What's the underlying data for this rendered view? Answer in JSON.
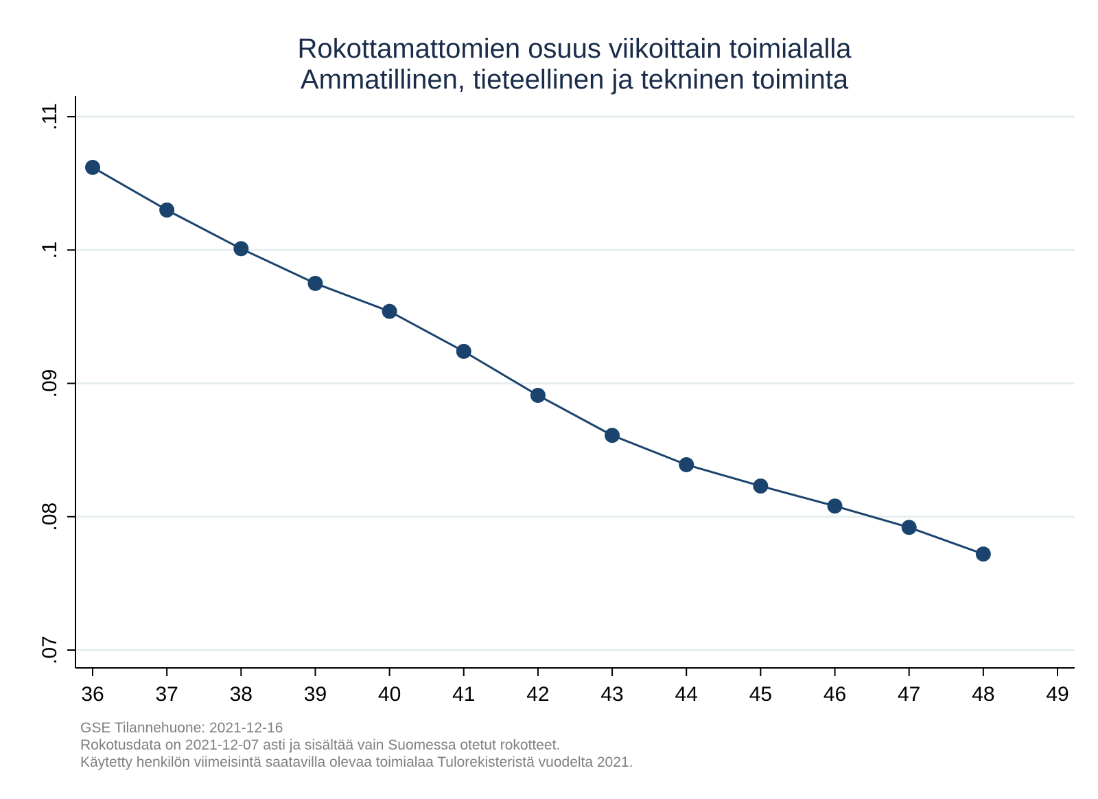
{
  "colors": {
    "series": "#1a446e",
    "grid": "#e6eef1",
    "axis": "#000000",
    "title": "#1a2c4a",
    "note": "#7f7f7f"
  },
  "chart_data": {
    "type": "line",
    "title_lines": [
      "Rokottamattomien osuus viikoittain toimialalla",
      "Ammatillinen, tieteellinen ja tekninen toiminta"
    ],
    "xlabel": "",
    "ylabel": "",
    "x": [
      36,
      37,
      38,
      39,
      40,
      41,
      42,
      43,
      44,
      45,
      46,
      47,
      48
    ],
    "series": [
      {
        "name": "Rokottamattomien osuus",
        "values": [
          0.1062,
          0.103,
          0.1001,
          0.0975,
          0.0954,
          0.0924,
          0.0891,
          0.0861,
          0.0839,
          0.0823,
          0.0808,
          0.0792,
          0.0772
        ]
      }
    ],
    "xlim": [
      36,
      49
    ],
    "ylim": [
      0.07,
      0.11
    ],
    "x_ticks": [
      "36",
      "37",
      "38",
      "39",
      "40",
      "41",
      "42",
      "43",
      "44",
      "45",
      "46",
      "47",
      "48",
      "49"
    ],
    "y_ticks": [
      {
        "value": 0.07,
        "label": ".07"
      },
      {
        "value": 0.08,
        "label": ".08"
      },
      {
        "value": 0.09,
        "label": ".09"
      },
      {
        "value": 0.1,
        "label": ".1"
      },
      {
        "value": 0.11,
        "label": ".11"
      }
    ],
    "grid": true,
    "legend": "none",
    "notes": [
      "GSE Tilannehuone: 2021-12-16",
      "Rokotusdata on 2021-12-07 asti ja sisältää vain Suomessa otetut rokotteet.",
      "Käytetty henkilön viimeisintä saatavilla olevaa toimialaa Tulorekisteristä vuodelta 2021."
    ]
  }
}
